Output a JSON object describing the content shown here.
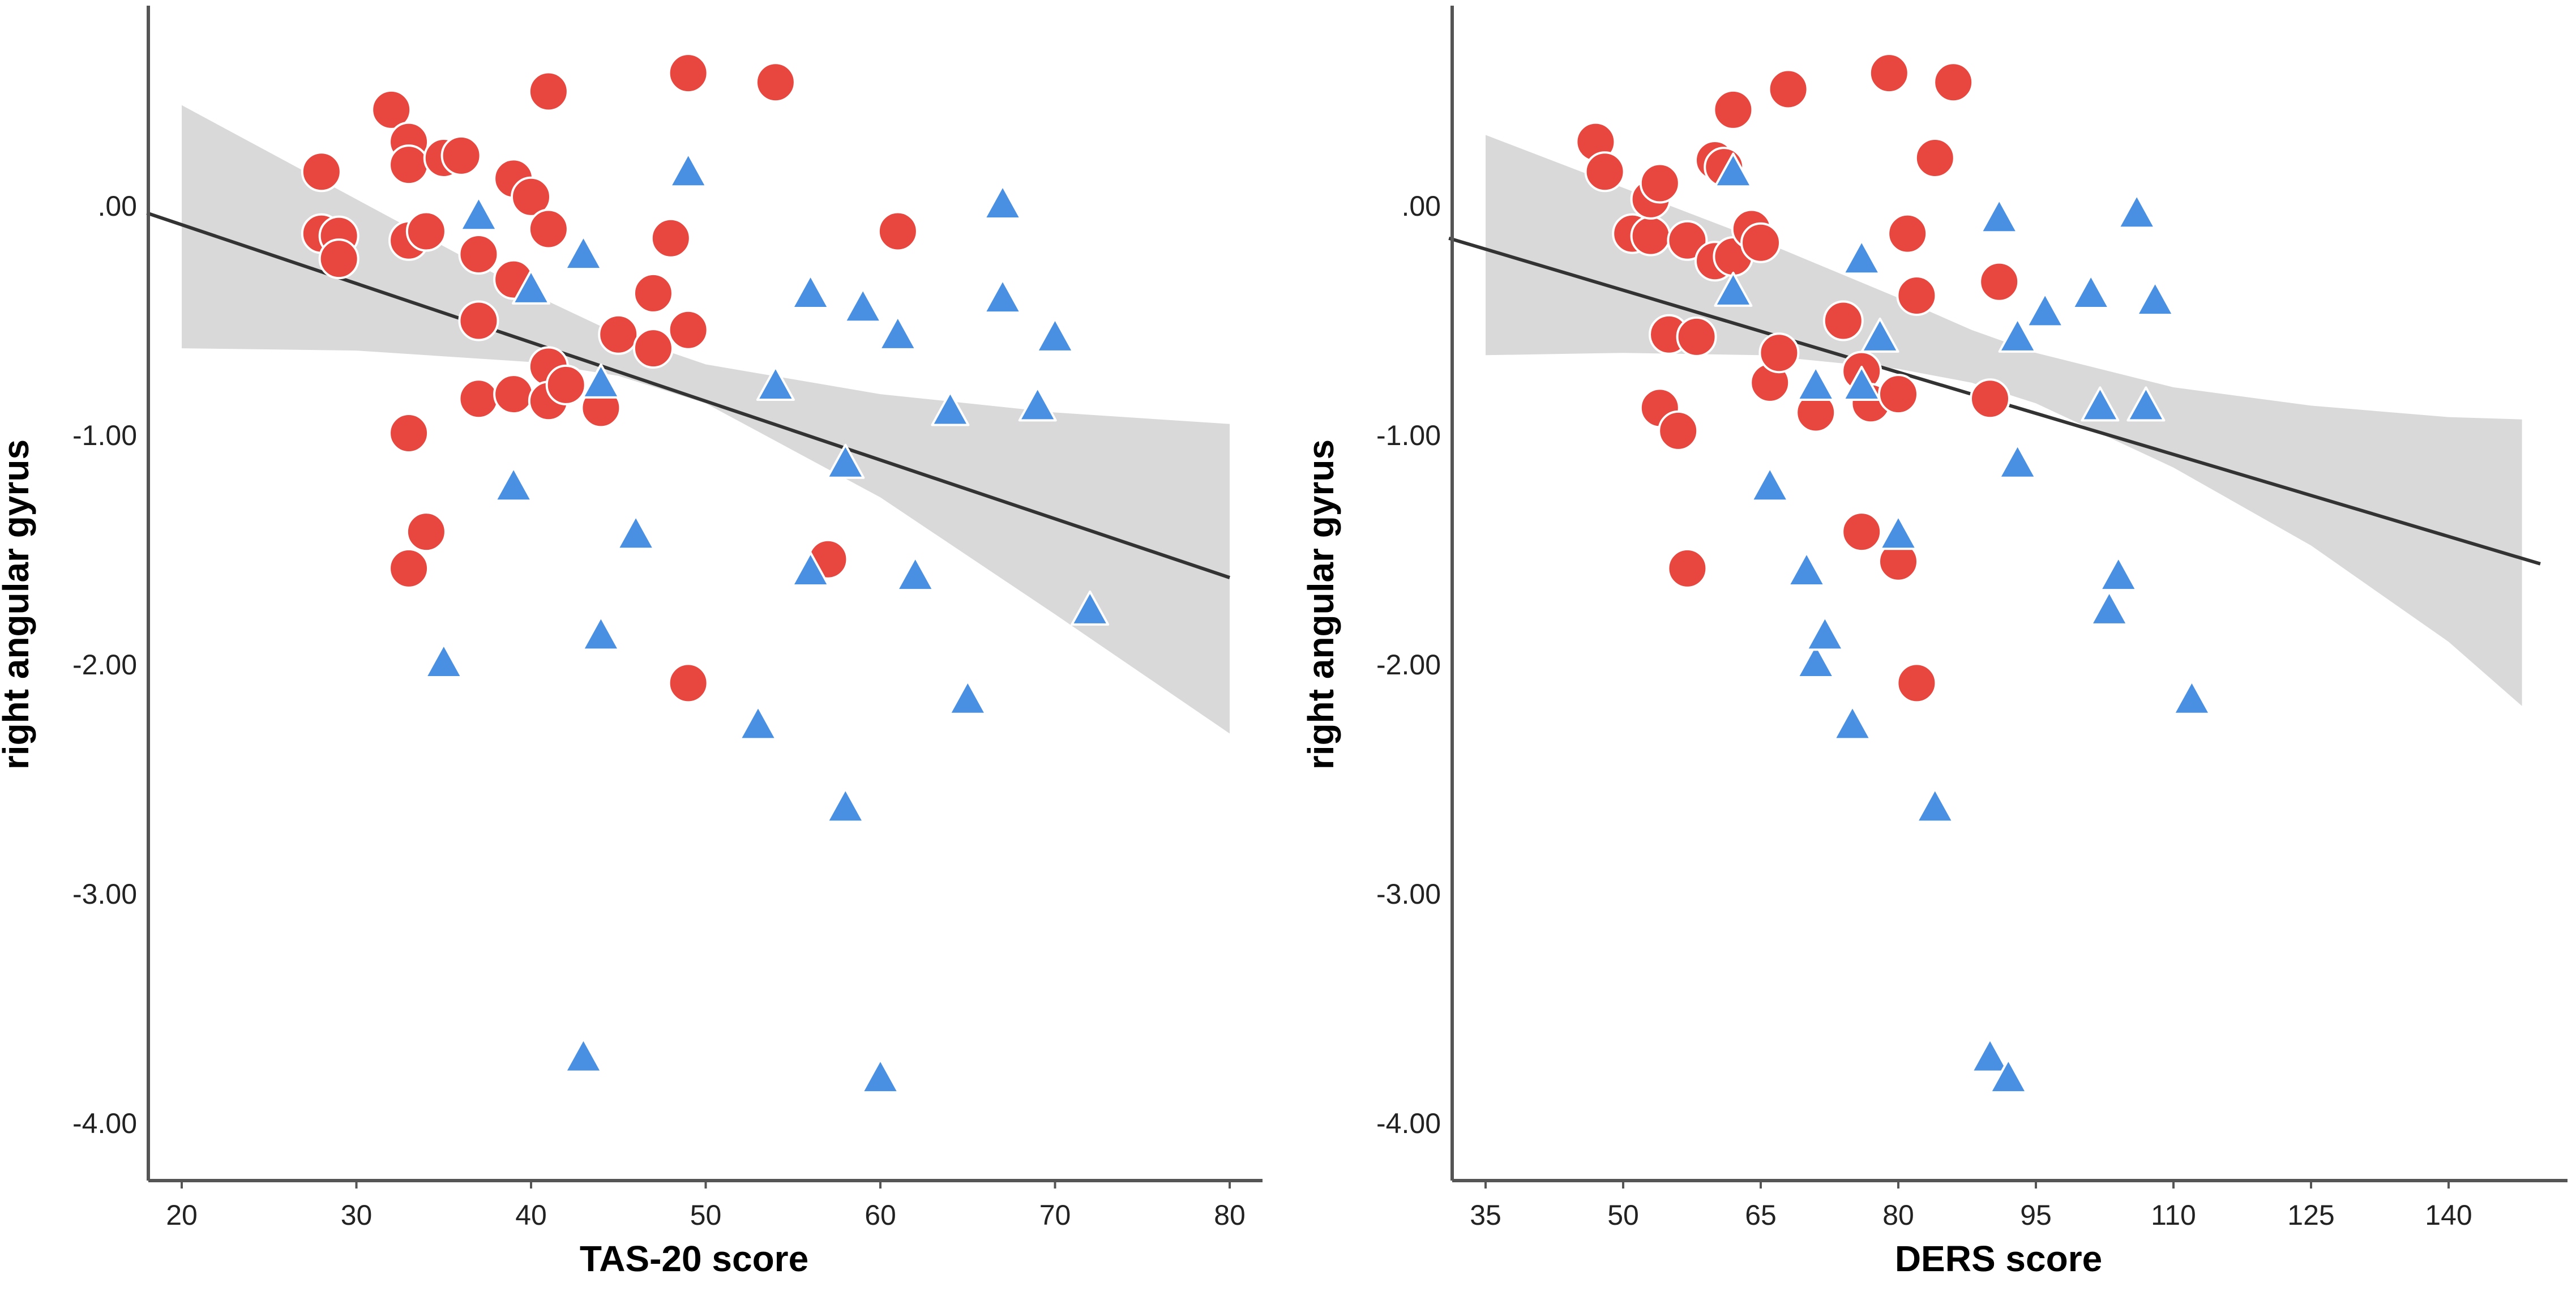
{
  "colors": {
    "circle_fill": "#e8473f",
    "triangle_fill": "#4a90e2",
    "marker_stroke": "#ffffff",
    "fit_line": "#333333",
    "band_fill": "#d9d9d9",
    "axis": "#555555"
  },
  "chart_data": [
    {
      "type": "scatter",
      "xlabel": "TAS-20 score",
      "ylabel": "right angular gyrus",
      "xlim": [
        18,
        82
      ],
      "ylim": [
        -4.25,
        0.9
      ],
      "xticks": [
        20,
        30,
        40,
        50,
        60,
        70,
        80
      ],
      "yticks": [
        0,
        -1,
        -2,
        -3,
        -4
      ],
      "xtick_labels": [
        "20",
        "30",
        "40",
        "50",
        "60",
        "70",
        "80"
      ],
      "ytick_labels": [
        ".00",
        "-1.00",
        "-2.00",
        "-3.00",
        "-4.00"
      ],
      "fit_line": {
        "x": [
          18,
          80
        ],
        "y": [
          -0.03,
          -1.62
        ]
      },
      "confidence_band": {
        "x": [
          20,
          30,
          40,
          45,
          50,
          60,
          70,
          80
        ],
        "upper": [
          0.44,
          0.03,
          -0.38,
          -0.56,
          -0.69,
          -0.82,
          -0.9,
          -0.95
        ],
        "lower": [
          -0.62,
          -0.63,
          -0.68,
          -0.74,
          -0.86,
          -1.27,
          -1.78,
          -2.3
        ]
      },
      "series": [
        {
          "name": "circle",
          "marker": "circle",
          "points": [
            [
              28,
              0.15
            ],
            [
              28,
              -0.12
            ],
            [
              29,
              -0.13
            ],
            [
              29,
              -0.23
            ],
            [
              32,
              0.42
            ],
            [
              33,
              0.28
            ],
            [
              33,
              0.18
            ],
            [
              33,
              -0.15
            ],
            [
              34,
              -0.11
            ],
            [
              35,
              0.21
            ],
            [
              36,
              0.22
            ],
            [
              37,
              -0.21
            ],
            [
              37,
              -0.5
            ],
            [
              37,
              -0.84
            ],
            [
              39,
              0.12
            ],
            [
              39,
              -0.32
            ],
            [
              39,
              -0.82
            ],
            [
              40,
              0.04
            ],
            [
              41,
              0.5
            ],
            [
              41,
              -0.1
            ],
            [
              41,
              -0.7
            ],
            [
              41,
              -0.85
            ],
            [
              42,
              -0.78
            ],
            [
              44,
              -0.88
            ],
            [
              45,
              -0.56
            ],
            [
              47,
              -0.38
            ],
            [
              47,
              -0.62
            ],
            [
              48,
              -0.14
            ],
            [
              49,
              0.58
            ],
            [
              49,
              -0.54
            ],
            [
              54,
              0.54
            ],
            [
              61,
              -0.11
            ],
            [
              33,
              -0.99
            ],
            [
              34,
              -1.42
            ],
            [
              33,
              -1.58
            ],
            [
              57,
              -1.54
            ],
            [
              49,
              -2.08
            ]
          ]
        },
        {
          "name": "triangle",
          "marker": "triangle",
          "points": [
            [
              37,
              -0.05
            ],
            [
              40,
              -0.37
            ],
            [
              43,
              -0.22
            ],
            [
              44,
              -0.78
            ],
            [
              49,
              0.14
            ],
            [
              54,
              -0.79
            ],
            [
              56,
              -0.39
            ],
            [
              59,
              -0.45
            ],
            [
              61,
              -0.57
            ],
            [
              64,
              -0.9
            ],
            [
              67,
              -0.0
            ],
            [
              67,
              -0.41
            ],
            [
              69,
              -0.88
            ],
            [
              70,
              -0.58
            ],
            [
              39,
              -1.23
            ],
            [
              46,
              -1.44
            ],
            [
              58,
              -1.13
            ],
            [
              56,
              -1.6
            ],
            [
              62,
              -1.62
            ],
            [
              72,
              -1.77
            ],
            [
              44,
              -1.88
            ],
            [
              35,
              -2.0
            ],
            [
              53,
              -2.27
            ],
            [
              65,
              -2.16
            ],
            [
              58,
              -2.63
            ],
            [
              43,
              -3.72
            ],
            [
              60,
              -3.81
            ]
          ]
        }
      ]
    },
    {
      "type": "scatter",
      "xlabel": "DERS score",
      "ylabel": "right angular gyrus",
      "xlim": [
        31,
        150
      ],
      "ylim": [
        -4.25,
        0.9
      ],
      "xticks": [
        35,
        50,
        65,
        80,
        95,
        110,
        125,
        140
      ],
      "yticks": [
        0,
        -1,
        -2,
        -3,
        -4
      ],
      "xtick_labels": [
        "35",
        "50",
        "65",
        "80",
        "95",
        "110",
        "125",
        "140"
      ],
      "ytick_labels": [
        ".00",
        "-1.00",
        "-2.00",
        "-3.00",
        "-4.00"
      ],
      "fit_line": {
        "x": [
          31,
          150
        ],
        "y": [
          -0.14,
          -1.56
        ]
      },
      "confidence_band": {
        "x": [
          35,
          50,
          65,
          80,
          88,
          95,
          110,
          125,
          140,
          148
        ],
        "upper": [
          0.31,
          0.08,
          -0.15,
          -0.4,
          -0.54,
          -0.64,
          -0.79,
          -0.87,
          -0.92,
          -0.93
        ],
        "lower": [
          -0.65,
          -0.64,
          -0.65,
          -0.71,
          -0.77,
          -0.86,
          -1.14,
          -1.48,
          -1.9,
          -2.18
        ]
      },
      "series": [
        {
          "name": "circle",
          "marker": "circle",
          "points": [
            [
              47,
              0.28
            ],
            [
              48,
              0.15
            ],
            [
              51,
              -0.12
            ],
            [
              53,
              -0.13
            ],
            [
              53,
              0.03
            ],
            [
              54,
              0.1
            ],
            [
              55,
              -0.56
            ],
            [
              57,
              -0.15
            ],
            [
              58,
              -0.57
            ],
            [
              60,
              0.2
            ],
            [
              60,
              -0.24
            ],
            [
              61,
              0.17
            ],
            [
              62,
              0.42
            ],
            [
              62,
              -0.22
            ],
            [
              64,
              -0.1
            ],
            [
              65,
              -0.16
            ],
            [
              66,
              -0.77
            ],
            [
              67,
              -0.64
            ],
            [
              68,
              0.51
            ],
            [
              71,
              -0.9
            ],
            [
              74,
              -0.5
            ],
            [
              76,
              -0.72
            ],
            [
              77,
              -0.86
            ],
            [
              79,
              0.58
            ],
            [
              80,
              -0.82
            ],
            [
              81,
              -0.12
            ],
            [
              82,
              -0.39
            ],
            [
              84,
              0.21
            ],
            [
              86,
              0.54
            ],
            [
              90,
              -0.84
            ],
            [
              91,
              -0.33
            ],
            [
              54,
              -0.88
            ],
            [
              56,
              -0.98
            ],
            [
              57,
              -1.58
            ],
            [
              76,
              -1.42
            ],
            [
              80,
              -1.55
            ],
            [
              82,
              -2.08
            ]
          ]
        },
        {
          "name": "triangle",
          "marker": "triangle",
          "points": [
            [
              62,
              0.14
            ],
            [
              62,
              -0.38
            ],
            [
              71,
              -0.79
            ],
            [
              76,
              -0.24
            ],
            [
              76,
              -0.79
            ],
            [
              78,
              -0.58
            ],
            [
              80,
              -1.44
            ],
            [
              66,
              -1.23
            ],
            [
              70,
              -1.6
            ],
            [
              71,
              -2.0
            ],
            [
              72,
              -1.88
            ],
            [
              75,
              -2.27
            ],
            [
              84,
              -2.63
            ],
            [
              91,
              -0.06
            ],
            [
              93,
              -0.58
            ],
            [
              93,
              -1.13
            ],
            [
              96,
              -0.47
            ],
            [
              101,
              -0.39
            ],
            [
              102,
              -0.88
            ],
            [
              103,
              -1.77
            ],
            [
              104,
              -1.62
            ],
            [
              106,
              -0.04
            ],
            [
              107,
              -0.88
            ],
            [
              108,
              -0.42
            ],
            [
              112,
              -2.16
            ],
            [
              90,
              -3.72
            ],
            [
              92,
              -3.81
            ]
          ]
        }
      ]
    }
  ]
}
